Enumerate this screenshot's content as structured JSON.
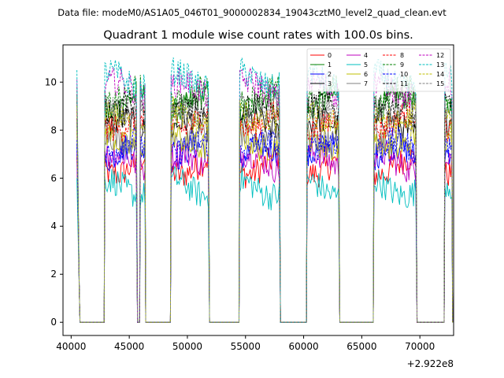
{
  "suptitle": "Data file: modeM0/AS1A05_046T01_9000002834_19043cztM0_level2_quad_clean.evt",
  "chart_data": {
    "type": "line",
    "title": "Quadrant 1 module wise count rates with 100.0s bins.",
    "xlabel": "",
    "ylabel": "",
    "x_offset_label": "+2.922e8",
    "xlim": [
      39300,
      72900
    ],
    "ylim": [
      -0.55,
      11.55
    ],
    "x_ticks": [
      40000,
      45000,
      50000,
      55000,
      60000,
      65000,
      70000
    ],
    "y_ticks": [
      0,
      2,
      4,
      6,
      8,
      10
    ],
    "legend_position": "top-right",
    "grid": false,
    "segments": [
      {
        "start": 40500,
        "end": 40700
      },
      {
        "start": 42900,
        "end": 45650
      },
      {
        "start": 45950,
        "end": 46350
      },
      {
        "start": 48600,
        "end": 51850
      },
      {
        "start": 54500,
        "end": 57950
      },
      {
        "start": 60300,
        "end": 63050
      },
      {
        "start": 66050,
        "end": 69700
      },
      {
        "start": 72150,
        "end": 72750
      }
    ],
    "series": [
      {
        "name": "0",
        "color": "#ff0000",
        "dash": "solid",
        "level": 6.5
      },
      {
        "name": "1",
        "color": "#008000",
        "dash": "solid",
        "level": 9.1
      },
      {
        "name": "2",
        "color": "#0000ff",
        "dash": "solid",
        "level": 7.0
      },
      {
        "name": "3",
        "color": "#000000",
        "dash": "solid",
        "level": 8.1
      },
      {
        "name": "4",
        "color": "#bf00bf",
        "dash": "solid",
        "level": 6.7
      },
      {
        "name": "5",
        "color": "#00bfbf",
        "dash": "solid",
        "level": 5.6
      },
      {
        "name": "6",
        "color": "#bfbf00",
        "dash": "solid",
        "level": 7.6
      },
      {
        "name": "7",
        "color": "#808080",
        "dash": "solid",
        "level": 7.9
      },
      {
        "name": "8",
        "color": "#ff0000",
        "dash": "dashed",
        "level": 8.4
      },
      {
        "name": "9",
        "color": "#008000",
        "dash": "dashed",
        "level": 9.4
      },
      {
        "name": "10",
        "color": "#0000ff",
        "dash": "dashed",
        "level": 7.2
      },
      {
        "name": "11",
        "color": "#000000",
        "dash": "dashed",
        "level": 8.8
      },
      {
        "name": "12",
        "color": "#bf00bf",
        "dash": "dashed",
        "level": 9.7
      },
      {
        "name": "13",
        "color": "#00bfbf",
        "dash": "dashed",
        "level": 10.1
      },
      {
        "name": "14",
        "color": "#bfbf00",
        "dash": "dashed",
        "level": 8.6
      },
      {
        "name": "15",
        "color": "#808080",
        "dash": "dashed",
        "level": 9.0
      }
    ]
  }
}
